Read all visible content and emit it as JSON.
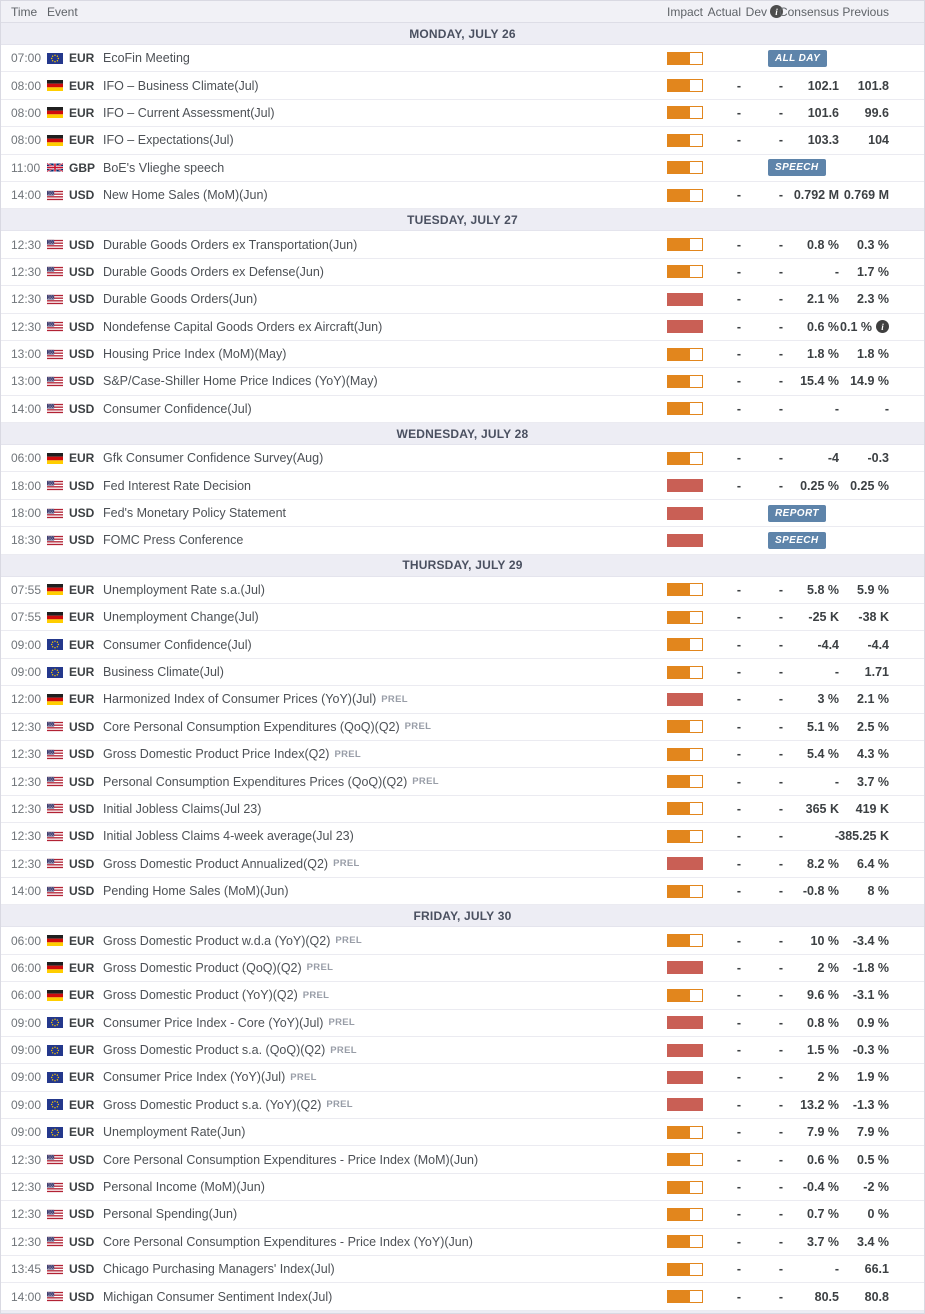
{
  "header": {
    "time": "Time",
    "event": "Event",
    "impact": "Impact",
    "actual": "Actual",
    "dev": "Dev",
    "dev_info_icon": "i",
    "consensus": "Consensus",
    "previous": "Previous"
  },
  "colors": {
    "impact_medium": "#e2861d",
    "impact_high": "#c95f55",
    "badge": "#5e84aa",
    "day_header_bg": "#ededf4",
    "table_header_bg": "#f1f1f6"
  },
  "days": [
    {
      "label": "MONDAY, JULY 26",
      "events": [
        {
          "time": "07:00",
          "flag": "eu",
          "currency": "EUR",
          "name": "EcoFin Meeting",
          "impact": "medium",
          "badge": "ALL DAY"
        },
        {
          "time": "08:00",
          "flag": "de",
          "currency": "EUR",
          "name": "IFO – Business Climate(Jul)",
          "impact": "medium",
          "actual": "-",
          "dev": "-",
          "consensus": "102.1",
          "previous": "101.8"
        },
        {
          "time": "08:00",
          "flag": "de",
          "currency": "EUR",
          "name": "IFO – Current Assessment(Jul)",
          "impact": "medium",
          "actual": "-",
          "dev": "-",
          "consensus": "101.6",
          "previous": "99.6"
        },
        {
          "time": "08:00",
          "flag": "de",
          "currency": "EUR",
          "name": "IFO – Expectations(Jul)",
          "impact": "medium",
          "actual": "-",
          "dev": "-",
          "consensus": "103.3",
          "previous": "104"
        },
        {
          "time": "11:00",
          "flag": "gb",
          "currency": "GBP",
          "name": "BoE's Vlieghe speech",
          "impact": "medium",
          "badge": "SPEECH"
        },
        {
          "time": "14:00",
          "flag": "us",
          "currency": "USD",
          "name": "New Home Sales (MoM)(Jun)",
          "impact": "medium",
          "actual": "-",
          "dev": "-",
          "consensus": "0.792 M",
          "previous": "0.769 M"
        }
      ]
    },
    {
      "label": "TUESDAY, JULY 27",
      "events": [
        {
          "time": "12:30",
          "flag": "us",
          "currency": "USD",
          "name": "Durable Goods Orders ex Transportation(Jun)",
          "impact": "medium",
          "actual": "-",
          "dev": "-",
          "consensus": "0.8 %",
          "previous": "0.3 %"
        },
        {
          "time": "12:30",
          "flag": "us",
          "currency": "USD",
          "name": "Durable Goods Orders ex Defense(Jun)",
          "impact": "medium",
          "actual": "-",
          "dev": "-",
          "consensus": "-",
          "previous": "1.7 %"
        },
        {
          "time": "12:30",
          "flag": "us",
          "currency": "USD",
          "name": "Durable Goods Orders(Jun)",
          "impact": "high",
          "actual": "-",
          "dev": "-",
          "consensus": "2.1 %",
          "previous": "2.3 %"
        },
        {
          "time": "12:30",
          "flag": "us",
          "currency": "USD",
          "name": "Nondefense Capital Goods Orders ex Aircraft(Jun)",
          "impact": "high",
          "actual": "-",
          "dev": "-",
          "consensus": "0.6 %",
          "previous": "0.1 %",
          "previous_info": true
        },
        {
          "time": "13:00",
          "flag": "us",
          "currency": "USD",
          "name": "Housing Price Index (MoM)(May)",
          "impact": "medium",
          "actual": "-",
          "dev": "-",
          "consensus": "1.8 %",
          "previous": "1.8 %"
        },
        {
          "time": "13:00",
          "flag": "us",
          "currency": "USD",
          "name": "S&P/Case-Shiller Home Price Indices (YoY)(May)",
          "impact": "medium",
          "actual": "-",
          "dev": "-",
          "consensus": "15.4 %",
          "previous": "14.9 %"
        },
        {
          "time": "14:00",
          "flag": "us",
          "currency": "USD",
          "name": "Consumer Confidence(Jul)",
          "impact": "medium",
          "actual": "-",
          "dev": "-",
          "consensus": "-",
          "previous": "-"
        }
      ]
    },
    {
      "label": "WEDNESDAY, JULY 28",
      "events": [
        {
          "time": "06:00",
          "flag": "de",
          "currency": "EUR",
          "name": "Gfk Consumer Confidence Survey(Aug)",
          "impact": "medium",
          "actual": "-",
          "dev": "-",
          "consensus": "-4",
          "previous": "-0.3"
        },
        {
          "time": "18:00",
          "flag": "us",
          "currency": "USD",
          "name": "Fed Interest Rate Decision",
          "impact": "high",
          "actual": "-",
          "dev": "-",
          "consensus": "0.25 %",
          "previous": "0.25 %"
        },
        {
          "time": "18:00",
          "flag": "us",
          "currency": "USD",
          "name": "Fed's Monetary Policy Statement",
          "impact": "high",
          "badge": "REPORT"
        },
        {
          "time": "18:30",
          "flag": "us",
          "currency": "USD",
          "name": "FOMC Press Conference",
          "impact": "high",
          "badge": "SPEECH"
        }
      ]
    },
    {
      "label": "THURSDAY, JULY 29",
      "events": [
        {
          "time": "07:55",
          "flag": "de",
          "currency": "EUR",
          "name": "Unemployment Rate s.a.(Jul)",
          "impact": "medium",
          "actual": "-",
          "dev": "-",
          "consensus": "5.8 %",
          "previous": "5.9 %"
        },
        {
          "time": "07:55",
          "flag": "de",
          "currency": "EUR",
          "name": "Unemployment Change(Jul)",
          "impact": "medium",
          "actual": "-",
          "dev": "-",
          "consensus": "-25 K",
          "previous": "-38 K"
        },
        {
          "time": "09:00",
          "flag": "eu",
          "currency": "EUR",
          "name": "Consumer Confidence(Jul)",
          "impact": "medium",
          "actual": "-",
          "dev": "-",
          "consensus": "-4.4",
          "previous": "-4.4"
        },
        {
          "time": "09:00",
          "flag": "eu",
          "currency": "EUR",
          "name": "Business Climate(Jul)",
          "impact": "medium",
          "actual": "-",
          "dev": "-",
          "consensus": "-",
          "previous": "1.71"
        },
        {
          "time": "12:00",
          "flag": "de",
          "currency": "EUR",
          "name": "Harmonized Index of Consumer Prices (YoY)(Jul)",
          "suffix": "PREL",
          "impact": "high",
          "actual": "-",
          "dev": "-",
          "consensus": "3 %",
          "previous": "2.1 %"
        },
        {
          "time": "12:30",
          "flag": "us",
          "currency": "USD",
          "name": "Core Personal Consumption Expenditures (QoQ)(Q2)",
          "suffix": "PREL",
          "impact": "medium",
          "actual": "-",
          "dev": "-",
          "consensus": "5.1 %",
          "previous": "2.5 %"
        },
        {
          "time": "12:30",
          "flag": "us",
          "currency": "USD",
          "name": "Gross Domestic Product Price Index(Q2)",
          "suffix": "PREL",
          "impact": "medium",
          "actual": "-",
          "dev": "-",
          "consensus": "5.4 %",
          "previous": "4.3 %"
        },
        {
          "time": "12:30",
          "flag": "us",
          "currency": "USD",
          "name": "Personal Consumption Expenditures Prices (QoQ)(Q2)",
          "suffix": "PREL",
          "impact": "medium",
          "actual": "-",
          "dev": "-",
          "consensus": "-",
          "previous": "3.7 %"
        },
        {
          "time": "12:30",
          "flag": "us",
          "currency": "USD",
          "name": "Initial Jobless Claims(Jul 23)",
          "impact": "medium",
          "actual": "-",
          "dev": "-",
          "consensus": "365 K",
          "previous": "419 K"
        },
        {
          "time": "12:30",
          "flag": "us",
          "currency": "USD",
          "name": "Initial Jobless Claims 4-week average(Jul 23)",
          "impact": "medium",
          "actual": "-",
          "dev": "-",
          "consensus": "-",
          "previous": "385.25 K"
        },
        {
          "time": "12:30",
          "flag": "us",
          "currency": "USD",
          "name": "Gross Domestic Product Annualized(Q2)",
          "suffix": "PREL",
          "impact": "high",
          "actual": "-",
          "dev": "-",
          "consensus": "8.2 %",
          "previous": "6.4 %"
        },
        {
          "time": "14:00",
          "flag": "us",
          "currency": "USD",
          "name": "Pending Home Sales (MoM)(Jun)",
          "impact": "medium",
          "actual": "-",
          "dev": "-",
          "consensus": "-0.8 %",
          "previous": "8 %"
        }
      ]
    },
    {
      "label": "FRIDAY, JULY 30",
      "events": [
        {
          "time": "06:00",
          "flag": "de",
          "currency": "EUR",
          "name": "Gross Domestic Product w.d.a (YoY)(Q2)",
          "suffix": "PREL",
          "impact": "medium",
          "actual": "-",
          "dev": "-",
          "consensus": "10 %",
          "previous": "-3.4 %"
        },
        {
          "time": "06:00",
          "flag": "de",
          "currency": "EUR",
          "name": "Gross Domestic Product (QoQ)(Q2)",
          "suffix": "PREL",
          "impact": "high",
          "actual": "-",
          "dev": "-",
          "consensus": "2 %",
          "previous": "-1.8 %"
        },
        {
          "time": "06:00",
          "flag": "de",
          "currency": "EUR",
          "name": "Gross Domestic Product (YoY)(Q2)",
          "suffix": "PREL",
          "impact": "medium",
          "actual": "-",
          "dev": "-",
          "consensus": "9.6 %",
          "previous": "-3.1 %"
        },
        {
          "time": "09:00",
          "flag": "eu",
          "currency": "EUR",
          "name": "Consumer Price Index - Core (YoY)(Jul)",
          "suffix": "PREL",
          "impact": "high",
          "actual": "-",
          "dev": "-",
          "consensus": "0.8 %",
          "previous": "0.9 %"
        },
        {
          "time": "09:00",
          "flag": "eu",
          "currency": "EUR",
          "name": "Gross Domestic Product s.a. (QoQ)(Q2)",
          "suffix": "PREL",
          "impact": "high",
          "actual": "-",
          "dev": "-",
          "consensus": "1.5 %",
          "previous": "-0.3 %"
        },
        {
          "time": "09:00",
          "flag": "eu",
          "currency": "EUR",
          "name": "Consumer Price Index (YoY)(Jul)",
          "suffix": "PREL",
          "impact": "high",
          "actual": "-",
          "dev": "-",
          "consensus": "2 %",
          "previous": "1.9 %"
        },
        {
          "time": "09:00",
          "flag": "eu",
          "currency": "EUR",
          "name": "Gross Domestic Product s.a. (YoY)(Q2)",
          "suffix": "PREL",
          "impact": "high",
          "actual": "-",
          "dev": "-",
          "consensus": "13.2 %",
          "previous": "-1.3 %"
        },
        {
          "time": "09:00",
          "flag": "eu",
          "currency": "EUR",
          "name": "Unemployment Rate(Jun)",
          "impact": "medium",
          "actual": "-",
          "dev": "-",
          "consensus": "7.9 %",
          "previous": "7.9 %"
        },
        {
          "time": "12:30",
          "flag": "us",
          "currency": "USD",
          "name": "Core Personal Consumption Expenditures - Price Index (MoM)(Jun)",
          "impact": "medium",
          "actual": "-",
          "dev": "-",
          "consensus": "0.6 %",
          "previous": "0.5 %"
        },
        {
          "time": "12:30",
          "flag": "us",
          "currency": "USD",
          "name": "Personal Income (MoM)(Jun)",
          "impact": "medium",
          "actual": "-",
          "dev": "-",
          "consensus": "-0.4 %",
          "previous": "-2 %"
        },
        {
          "time": "12:30",
          "flag": "us",
          "currency": "USD",
          "name": "Personal Spending(Jun)",
          "impact": "medium",
          "actual": "-",
          "dev": "-",
          "consensus": "0.7 %",
          "previous": "0 %"
        },
        {
          "time": "12:30",
          "flag": "us",
          "currency": "USD",
          "name": "Core Personal Consumption Expenditures - Price Index (YoY)(Jun)",
          "impact": "medium",
          "actual": "-",
          "dev": "-",
          "consensus": "3.7 %",
          "previous": "3.4 %"
        },
        {
          "time": "13:45",
          "flag": "us",
          "currency": "USD",
          "name": "Chicago Purchasing Managers' Index(Jul)",
          "impact": "medium",
          "actual": "-",
          "dev": "-",
          "consensus": "-",
          "previous": "66.1"
        },
        {
          "time": "14:00",
          "flag": "us",
          "currency": "USD",
          "name": "Michigan Consumer Sentiment Index(Jul)",
          "impact": "medium",
          "actual": "-",
          "dev": "-",
          "consensus": "80.5",
          "previous": "80.8"
        }
      ]
    }
  ]
}
